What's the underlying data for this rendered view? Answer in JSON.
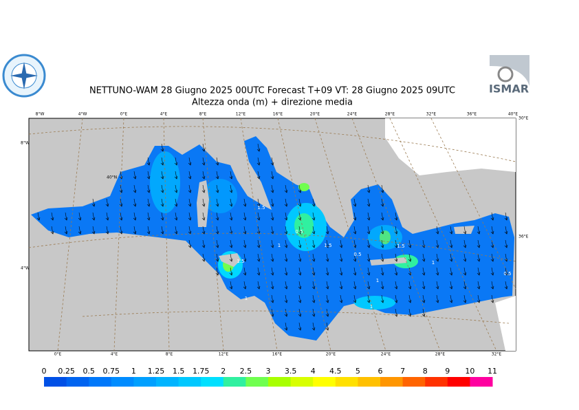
{
  "header": {
    "title": "NETTUNO-WAM  28   Giugno  2025 00UTC Forecast T+09 VT: 28   Giugno  2025 09UTC",
    "subtitle": "Altezza onda (m) + direzione media",
    "logo_right": "ISMAR"
  },
  "map": {
    "top_labels": [
      "8°W",
      "4°W",
      "0°E",
      "4°E",
      "8°E",
      "12°E",
      "16°E",
      "20°E",
      "24°E",
      "28°E",
      "32°E",
      "36°E",
      "40°E"
    ],
    "bottom_labels": [
      "0°E",
      "4°E",
      "8°E",
      "12°E",
      "16°E",
      "20°E",
      "24°E",
      "28°E",
      "32°E"
    ],
    "left_labels": [
      "8°W",
      "40°N",
      "4°W"
    ],
    "right_labels": [
      "30°E",
      "36°E"
    ],
    "contour_labels": [
      1.5,
      0.5,
      1.5,
      1,
      1.5,
      1,
      0.5,
      1.5,
      1,
      1,
      0.5,
      1
    ]
  },
  "colorbar": {
    "levels": [
      0,
      0.25,
      0.5,
      0.75,
      1,
      1.25,
      1.5,
      1.75,
      2,
      2.5,
      3,
      3.5,
      4,
      4.5,
      5,
      6,
      7,
      8,
      9,
      10,
      11
    ],
    "colors": [
      "#0050e6",
      "#0064f0",
      "#0078fa",
      "#008cff",
      "#00a0ff",
      "#00b4ff",
      "#00c8ff",
      "#00e0ff",
      "#30f0a0",
      "#70ff50",
      "#a8ff00",
      "#d8ff00",
      "#ffff00",
      "#ffe000",
      "#ffc000",
      "#ff9600",
      "#ff6400",
      "#ff3200",
      "#ff0000",
      "#ff00a0"
    ]
  }
}
